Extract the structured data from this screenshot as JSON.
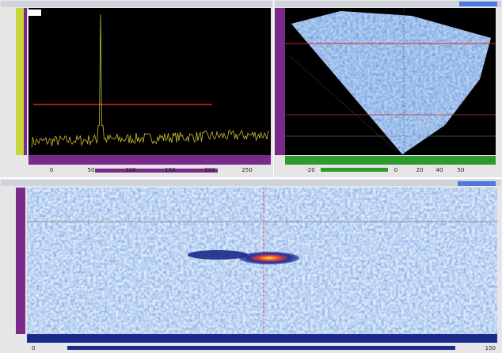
{
  "panels": [
    {
      "ticks": [
        "0",
        "50",
        "100",
        "150",
        "200",
        "250"
      ]
    },
    {
      "ticks": [
        "-20",
        "0",
        "20",
        "40",
        "50"
      ]
    },
    {
      "ticks": [
        "0",
        "150"
      ]
    }
  ]
}
